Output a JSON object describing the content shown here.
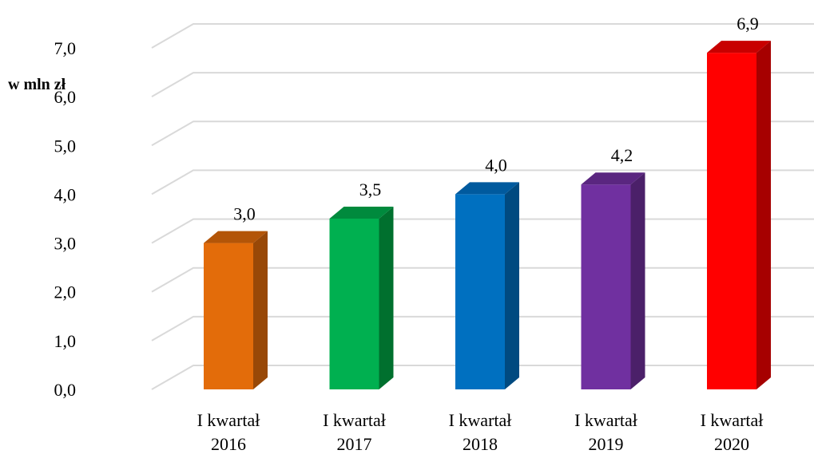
{
  "chart_data": {
    "type": "bar",
    "style": "3d-columns",
    "ylabel": "w mln zł",
    "xlabel": "",
    "ylim": [
      0,
      7
    ],
    "ytick_labels": [
      "0,0",
      "1,0",
      "2,0",
      "3,0",
      "4,0",
      "5,0",
      "6,0",
      "7,0"
    ],
    "grid": true,
    "legend": "none",
    "categories": [
      [
        "I kwartał",
        "2016"
      ],
      [
        "I kwartał",
        "2017"
      ],
      [
        "I kwartał",
        "2018"
      ],
      [
        "I kwartał",
        "2019"
      ],
      [
        "I kwartał",
        "2020"
      ]
    ],
    "values": [
      3.0,
      3.5,
      4.0,
      4.2,
      6.9
    ],
    "data_labels": [
      "3,0",
      "3,5",
      "4,0",
      "4,2",
      "6,9"
    ],
    "colors": [
      "#E36C0A",
      "#00B050",
      "#0070C0",
      "#7030A0",
      "#FF0000"
    ],
    "side_colors": [
      "#984807",
      "#00702E",
      "#004A80",
      "#4B2069",
      "#A60000"
    ],
    "top_colors": [
      "#B35508",
      "#008A3D",
      "#005A9E",
      "#5A2680",
      "#C80000"
    ],
    "gridline_color": "#D9D9D9"
  }
}
